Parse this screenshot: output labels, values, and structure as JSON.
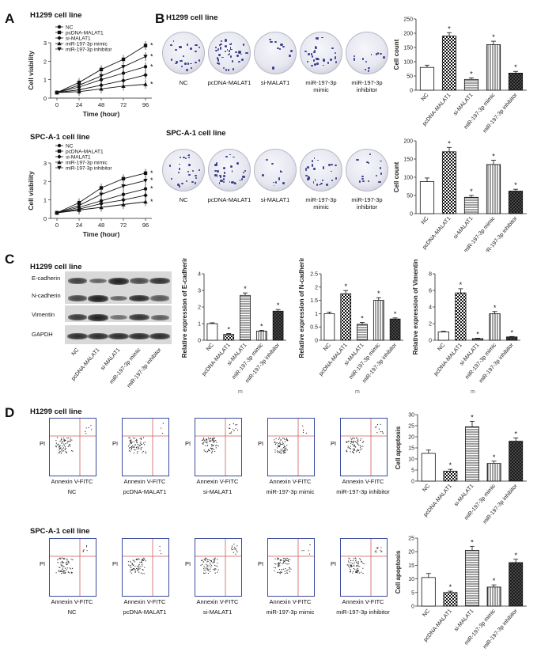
{
  "panels": {
    "A": "A",
    "B": "B",
    "C": "C",
    "D": "D"
  },
  "cell_lines": {
    "h1299": "H1299 cell line",
    "spca1": "SPC-A-1 cell line"
  },
  "groups": [
    "NC",
    "pcDNA-MALAT1",
    "si-MALAT1",
    "miR-197-3p mimic",
    "miR-197-3p inhibitor"
  ],
  "dish_labels": [
    "NC",
    "pcDNA-MALAT1",
    "si-MALAT1",
    "miR-197-3p\nmimic",
    "miR-197-3p\ninhibitor"
  ],
  "flow": {
    "xlabel": "Annexin V-FITC",
    "ylabel": "PI"
  },
  "western": {
    "proteins": [
      "E-cadherin",
      "N-cadherin",
      "Vimentin",
      "GAPDH"
    ]
  },
  "sig_mark": "*",
  "stray_marks": [
    "m",
    "m",
    "m"
  ],
  "colors": {
    "axis": "#222222",
    "flow_frame": "#3a4a9c",
    "gate": "#d05a5a"
  },
  "chart_data": [
    {
      "id": "viab_h1299",
      "type": "line",
      "title": "H1299 cell line",
      "xlabel": "Time (hour)",
      "ylabel": "Cell viability",
      "x": [
        0,
        24,
        48,
        72,
        96
      ],
      "ylim": [
        0,
        3
      ],
      "yticks": [
        0,
        1,
        2,
        3
      ],
      "series": [
        {
          "name": "NC",
          "values": [
            0.3,
            0.6,
            1.0,
            1.35,
            1.7
          ]
        },
        {
          "name": "pcDNA-MALAT1",
          "values": [
            0.3,
            0.85,
            1.55,
            2.1,
            2.85
          ]
        },
        {
          "name": "si-MALAT1",
          "values": [
            0.3,
            0.45,
            0.7,
            0.95,
            1.25
          ]
        },
        {
          "name": "miR-197-3p mimic",
          "values": [
            0.3,
            0.35,
            0.5,
            0.65,
            0.75
          ]
        },
        {
          "name": "miR-197-3p inhibitor",
          "values": [
            0.3,
            0.7,
            1.2,
            1.7,
            2.25
          ]
        }
      ],
      "annotations": [
        "*",
        "*",
        "*",
        "*"
      ]
    },
    {
      "id": "viab_spca1",
      "type": "line",
      "title": "SPC-A-1 cell line",
      "xlabel": "Time (hour)",
      "ylabel": "Cell viability",
      "x": [
        0,
        24,
        48,
        72,
        96
      ],
      "ylim": [
        0,
        3
      ],
      "yticks": [
        0,
        1,
        2,
        3
      ],
      "series": [
        {
          "name": "NC",
          "values": [
            0.3,
            0.6,
            0.95,
            1.3,
            1.6
          ]
        },
        {
          "name": "pcDNA-MALAT1",
          "values": [
            0.3,
            0.85,
            1.65,
            2.15,
            2.45
          ]
        },
        {
          "name": "si-MALAT1",
          "values": [
            0.3,
            0.5,
            0.8,
            1.0,
            1.25
          ]
        },
        {
          "name": "miR-197-3p mimic",
          "values": [
            0.3,
            0.45,
            0.6,
            0.75,
            0.9
          ]
        },
        {
          "name": "miR-197-3p inhibitor",
          "values": [
            0.3,
            0.7,
            1.3,
            1.75,
            2.05
          ]
        }
      ],
      "annotations": [
        "*",
        "*",
        "*",
        "*"
      ]
    },
    {
      "id": "count_h1299",
      "type": "bar",
      "ylabel": "Cell count",
      "categories": [
        "NC",
        "pcDNA-MALAT1",
        "si-MALAT1",
        "miR-197-3p mimic",
        "miR-197-3p inhibitor"
      ],
      "values": [
        80,
        190,
        38,
        160,
        60
      ],
      "errors": [
        8,
        12,
        5,
        12,
        6
      ],
      "ylim": [
        0,
        250
      ],
      "yticks": [
        0,
        50,
        100,
        150,
        200,
        250
      ],
      "sig": [
        false,
        true,
        true,
        true,
        true
      ]
    },
    {
      "id": "count_spca1",
      "type": "bar",
      "ylabel": "Cell count",
      "categories": [
        "NC",
        "pcDNA-MALAT1",
        "si-MALAT1",
        "miR-197-3p mimic",
        "miR-197-3p inhibitor"
      ],
      "values": [
        88,
        170,
        45,
        135,
        62
      ],
      "errors": [
        10,
        12,
        5,
        12,
        5
      ],
      "ylim": [
        0,
        200
      ],
      "yticks": [
        0,
        50,
        100,
        150,
        200
      ],
      "sig": [
        false,
        true,
        true,
        true,
        true
      ]
    },
    {
      "id": "expr_ecad",
      "type": "bar",
      "ylabel": "Relative expression of E-cadherin",
      "categories": [
        "NC",
        "pcDNA-MALAT1",
        "si-MALAT1",
        "miR-197-3p mimic",
        "miR-197-3p inhibitor"
      ],
      "values": [
        1.0,
        0.35,
        2.7,
        0.55,
        1.75
      ],
      "errors": [
        0.05,
        0.05,
        0.15,
        0.05,
        0.1
      ],
      "ylim": [
        0,
        4
      ],
      "yticks": [
        0,
        1,
        2,
        3,
        4
      ],
      "sig": [
        false,
        true,
        true,
        true,
        true
      ]
    },
    {
      "id": "expr_ncad",
      "type": "bar",
      "ylabel": "Relative expression of N-cadherin",
      "categories": [
        "NC",
        "pcDNA-MALAT1",
        "si-MALAT1",
        "miR-197-3p mimic",
        "miR-197-3p inhibitor"
      ],
      "values": [
        1.0,
        1.75,
        0.6,
        1.5,
        0.8
      ],
      "errors": [
        0.06,
        0.12,
        0.07,
        0.1,
        0.04
      ],
      "ylim": [
        0,
        2.5
      ],
      "yticks": [
        0,
        0.5,
        1.0,
        1.5,
        2.0,
        2.5
      ],
      "sig": [
        false,
        true,
        true,
        true,
        true
      ]
    },
    {
      "id": "expr_vim",
      "type": "bar",
      "ylabel": "Relative expression of Vimentin",
      "categories": [
        "NC",
        "pcDNA-MALAT1",
        "si-MALAT1",
        "miR-197-3p mimic",
        "miR-197-3p inhibitor"
      ],
      "values": [
        1.0,
        5.7,
        0.2,
        3.2,
        0.4
      ],
      "errors": [
        0.08,
        0.5,
        0.05,
        0.25,
        0.05
      ],
      "ylim": [
        0,
        8
      ],
      "yticks": [
        0,
        2,
        4,
        6,
        8
      ],
      "sig": [
        false,
        true,
        true,
        true,
        true
      ]
    },
    {
      "id": "apop_h1299",
      "type": "bar",
      "ylabel": "Cell apoptosis",
      "categories": [
        "NC",
        "pcDNA-MALAT1",
        "si-MALAT1",
        "miR-197-3p mimic",
        "miR-197-3p inhibitor"
      ],
      "values": [
        12.5,
        4.5,
        24.5,
        8.0,
        18.0
      ],
      "errors": [
        1.5,
        0.8,
        2.5,
        1.0,
        1.5
      ],
      "ylim": [
        0,
        30
      ],
      "yticks": [
        0,
        5,
        10,
        15,
        20,
        25,
        30
      ],
      "sig": [
        false,
        true,
        true,
        true,
        true
      ]
    },
    {
      "id": "apop_spca1",
      "type": "bar",
      "ylabel": "Cell apoptosis",
      "categories": [
        "NC",
        "pcDNA-MALAT1",
        "si-MALAT1",
        "miR-197-3p mimic",
        "miR-197-3p inhibitor"
      ],
      "values": [
        10.5,
        5.0,
        20.5,
        7.0,
        16.0
      ],
      "errors": [
        1.5,
        0.5,
        1.5,
        0.8,
        1.2
      ],
      "ylim": [
        0,
        25
      ],
      "yticks": [
        0,
        5,
        10,
        15,
        20,
        25
      ],
      "sig": [
        false,
        true,
        true,
        true,
        true
      ]
    }
  ]
}
